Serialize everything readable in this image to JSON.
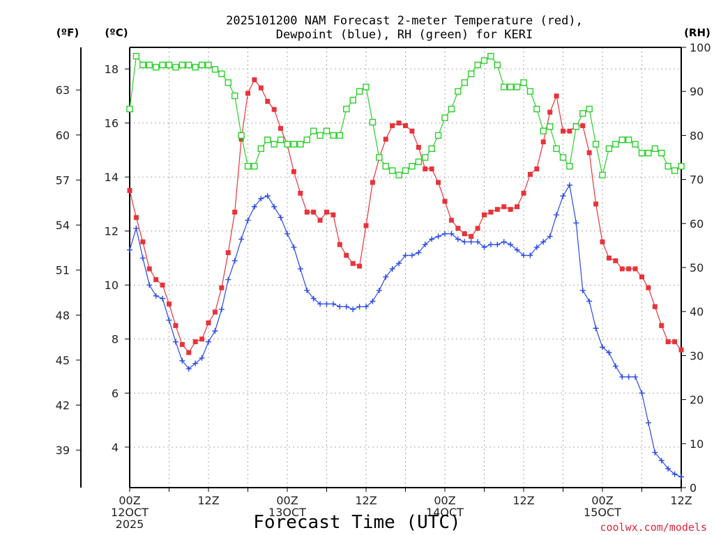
{
  "title_line1": "2025101200 NAM Forecast 2-meter Temperature (red),",
  "title_line2": "Dewpoint (blue), RH (green) for KERI",
  "credit": "coolwx.com/models",
  "chart_data": {
    "type": "line",
    "title": "2025101200 NAM Forecast 2-meter Temperature (red), Dewpoint (blue), RH (green) for KERI",
    "xlabel": "Forecast Time (UTC)",
    "hours": [
      0,
      1,
      2,
      3,
      4,
      5,
      6,
      7,
      8,
      9,
      10,
      11,
      12,
      13,
      14,
      15,
      16,
      17,
      18,
      19,
      20,
      21,
      22,
      23,
      24,
      25,
      26,
      27,
      28,
      29,
      30,
      31,
      32,
      33,
      34,
      35,
      36,
      37,
      38,
      39,
      40,
      41,
      42,
      43,
      44,
      45,
      46,
      47,
      48,
      49,
      50,
      51,
      52,
      53,
      54,
      55,
      56,
      57,
      58,
      59,
      60,
      61,
      62,
      63,
      64,
      65,
      66,
      67,
      68,
      69,
      70,
      71,
      72,
      73,
      74,
      75,
      76,
      77,
      78,
      79,
      80,
      81,
      82,
      83,
      84
    ],
    "xlim": [
      0,
      84
    ],
    "x_ticks": [
      {
        "hour": 0,
        "line1": "00Z",
        "line2": "12OCT",
        "line3": "2025"
      },
      {
        "hour": 12,
        "line1": "12Z",
        "line2": "",
        "line3": ""
      },
      {
        "hour": 24,
        "line1": "00Z",
        "line2": "13OCT",
        "line3": ""
      },
      {
        "hour": 36,
        "line1": "12Z",
        "line2": "",
        "line3": ""
      },
      {
        "hour": 48,
        "line1": "00Z",
        "line2": "14OCT",
        "line3": ""
      },
      {
        "hour": 60,
        "line1": "12Z",
        "line2": "",
        "line3": ""
      },
      {
        "hour": 72,
        "line1": "00Z",
        "line2": "15OCT",
        "line3": ""
      },
      {
        "hour": 84,
        "line1": "12Z",
        "line2": "",
        "line3": ""
      }
    ],
    "y_celsius": {
      "label": "(ºC)",
      "lim": [
        2.5,
        18.8
      ],
      "ticks": [
        4,
        6,
        8,
        10,
        12,
        14,
        16,
        18
      ]
    },
    "y_fahrenheit": {
      "label": "(ºF)",
      "ticks": [
        39,
        42,
        45,
        48,
        51,
        54,
        57,
        60,
        63
      ]
    },
    "y_rh": {
      "label": "(RH)",
      "lim": [
        0,
        100
      ],
      "ticks": [
        0,
        10,
        20,
        30,
        40,
        50,
        60,
        70,
        80,
        90,
        100
      ]
    },
    "series": [
      {
        "name": "Temperature",
        "color": "#e8333a",
        "marker": "filled-square",
        "axis": "celsius",
        "values": [
          13.5,
          12.5,
          11.6,
          10.6,
          10.2,
          10.0,
          9.3,
          8.5,
          7.8,
          7.5,
          7.9,
          8.0,
          8.6,
          9.0,
          9.9,
          11.2,
          12.7,
          15.4,
          17.1,
          17.6,
          17.3,
          16.8,
          16.5,
          15.8,
          15.2,
          14.2,
          13.4,
          12.7,
          12.7,
          12.4,
          12.7,
          12.6,
          11.5,
          11.1,
          10.8,
          10.7,
          12.2,
          13.8,
          14.7,
          15.4,
          15.9,
          16.0,
          15.9,
          15.7,
          15.1,
          14.3,
          14.3,
          13.8,
          13.1,
          12.4,
          12.1,
          11.9,
          11.8,
          12.1,
          12.6,
          12.7,
          12.8,
          12.9,
          12.8,
          12.9,
          13.4,
          14.1,
          14.3,
          15.3,
          16.4,
          17.0,
          15.7,
          15.7,
          15.9,
          15.9,
          14.9,
          13.0,
          11.6,
          11.0,
          10.9,
          10.6,
          10.6,
          10.6,
          10.3,
          9.9,
          9.2,
          8.5,
          7.9,
          7.9,
          7.6
        ]
      },
      {
        "name": "Dewpoint",
        "color": "#2848e8",
        "marker": "plus",
        "axis": "celsius",
        "values": [
          11.3,
          12.1,
          11.0,
          10.0,
          9.6,
          9.5,
          8.7,
          7.9,
          7.2,
          6.9,
          7.1,
          7.3,
          7.9,
          8.3,
          9.1,
          10.2,
          10.9,
          11.7,
          12.4,
          12.9,
          13.2,
          13.3,
          12.9,
          12.5,
          11.9,
          11.4,
          10.6,
          9.8,
          9.5,
          9.3,
          9.3,
          9.3,
          9.2,
          9.2,
          9.1,
          9.2,
          9.2,
          9.4,
          9.8,
          10.3,
          10.6,
          10.8,
          11.1,
          11.1,
          11.2,
          11.5,
          11.7,
          11.8,
          11.9,
          11.9,
          11.7,
          11.6,
          11.6,
          11.6,
          11.4,
          11.5,
          11.5,
          11.6,
          11.5,
          11.3,
          11.1,
          11.1,
          11.4,
          11.6,
          11.8,
          12.6,
          13.3,
          13.7,
          12.3,
          9.8,
          9.4,
          8.4,
          7.7,
          7.5,
          7.0,
          6.6,
          6.6,
          6.6,
          6.0,
          4.9,
          3.8,
          3.5,
          3.2,
          3.0,
          2.9
        ]
      },
      {
        "name": "RH",
        "color": "#28d028",
        "marker": "open-square",
        "axis": "rh",
        "values": [
          86,
          98,
          96,
          96,
          95.5,
          96,
          96,
          95.5,
          96,
          96,
          95.5,
          96,
          96,
          95,
          94,
          92,
          89,
          80,
          73,
          73,
          77,
          79,
          78,
          79,
          78,
          78,
          78,
          79,
          81,
          80,
          81,
          80,
          80,
          86,
          88,
          90,
          91,
          83,
          75,
          73,
          72,
          71,
          72,
          73,
          74,
          75,
          77,
          80,
          84,
          86,
          90,
          92,
          94,
          96,
          97,
          98,
          96,
          91,
          91,
          91,
          92,
          90,
          86,
          81,
          82,
          77,
          75,
          73,
          82,
          85,
          86,
          78,
          71,
          77,
          78,
          79,
          79,
          78,
          76,
          76,
          77,
          76,
          73,
          72,
          73
        ]
      }
    ]
  }
}
